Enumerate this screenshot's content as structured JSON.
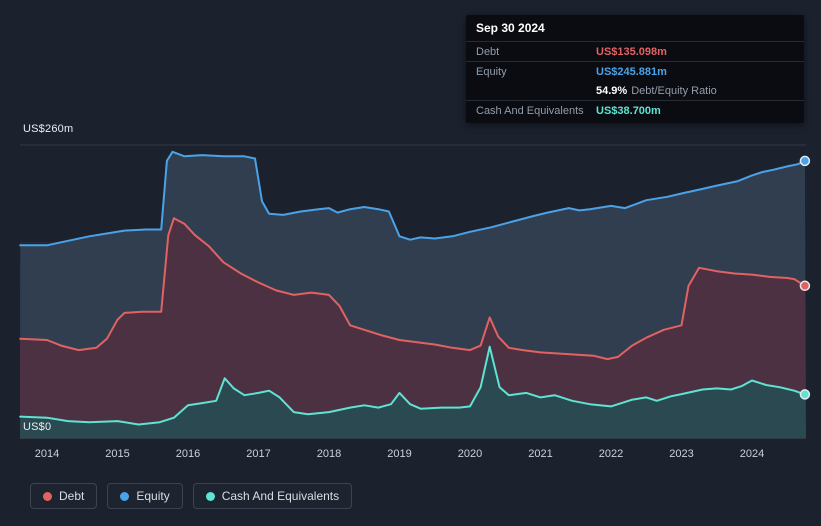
{
  "colors": {
    "background": "#1b222e",
    "debt": "#e26262",
    "equity": "#4aa3e8",
    "cash": "#5fe3d2"
  },
  "tooltip": {
    "date": "Sep 30 2024",
    "debt_label": "Debt",
    "debt_value": "US$135.098m",
    "equity_label": "Equity",
    "equity_value": "US$245.881m",
    "ratio_value": "54.9%",
    "ratio_label": "Debt/Equity Ratio",
    "cash_label": "Cash And Equivalents",
    "cash_value": "US$38.700m"
  },
  "legend": {
    "items": [
      {
        "label": "Debt",
        "color": "#e26262"
      },
      {
        "label": "Equity",
        "color": "#4aa3e8"
      },
      {
        "label": "Cash And Equivalents",
        "color": "#5fe3d2"
      }
    ]
  },
  "chart_data": {
    "type": "area",
    "y_top_label": "US$260m",
    "y_bottom_label": "US$0",
    "ylim": [
      0,
      260
    ],
    "x_ticks": [
      2014,
      2015,
      2016,
      2017,
      2018,
      2019,
      2020,
      2021,
      2022,
      2023,
      2024
    ],
    "grid": true,
    "legend_position": "bottom-left",
    "series": [
      {
        "name": "Equity",
        "color": "#4aa3e8",
        "fill": "#313e50",
        "latest_value": 245.881,
        "points": [
          [
            2013.62,
            171
          ],
          [
            2014,
            171
          ],
          [
            2014.3,
            175
          ],
          [
            2014.6,
            179
          ],
          [
            2014.9,
            182
          ],
          [
            2015.1,
            184
          ],
          [
            2015.4,
            185
          ],
          [
            2015.62,
            185
          ],
          [
            2015.7,
            246
          ],
          [
            2015.78,
            254
          ],
          [
            2015.95,
            250
          ],
          [
            2016.2,
            251
          ],
          [
            2016.5,
            250
          ],
          [
            2016.8,
            250
          ],
          [
            2016.95,
            248
          ],
          [
            2017.05,
            210
          ],
          [
            2017.15,
            199
          ],
          [
            2017.35,
            198
          ],
          [
            2017.6,
            201
          ],
          [
            2017.85,
            203
          ],
          [
            2018.0,
            204
          ],
          [
            2018.12,
            200
          ],
          [
            2018.3,
            203
          ],
          [
            2018.5,
            205
          ],
          [
            2018.7,
            203
          ],
          [
            2018.85,
            201
          ],
          [
            2019.0,
            179
          ],
          [
            2019.15,
            176
          ],
          [
            2019.3,
            178
          ],
          [
            2019.5,
            177
          ],
          [
            2019.75,
            179
          ],
          [
            2020.0,
            183
          ],
          [
            2020.3,
            187
          ],
          [
            2020.6,
            192
          ],
          [
            2020.9,
            197
          ],
          [
            2021.1,
            200
          ],
          [
            2021.4,
            204
          ],
          [
            2021.55,
            202
          ],
          [
            2021.7,
            203
          ],
          [
            2022.0,
            206
          ],
          [
            2022.2,
            204
          ],
          [
            2022.5,
            211
          ],
          [
            2022.8,
            214
          ],
          [
            2023.0,
            217
          ],
          [
            2023.3,
            221
          ],
          [
            2023.5,
            224
          ],
          [
            2023.8,
            228
          ],
          [
            2024.0,
            233
          ],
          [
            2024.15,
            236
          ],
          [
            2024.3,
            238
          ],
          [
            2024.5,
            241
          ],
          [
            2024.65,
            243
          ],
          [
            2024.75,
            245.881
          ]
        ]
      },
      {
        "name": "Debt",
        "color": "#e26262",
        "fill": "#4c3143",
        "latest_value": 135.098,
        "points": [
          [
            2013.62,
            88
          ],
          [
            2014,
            87
          ],
          [
            2014.2,
            82
          ],
          [
            2014.45,
            78
          ],
          [
            2014.7,
            80
          ],
          [
            2014.85,
            88
          ],
          [
            2015.0,
            105
          ],
          [
            2015.1,
            111
          ],
          [
            2015.35,
            112
          ],
          [
            2015.62,
            112
          ],
          [
            2015.72,
            180
          ],
          [
            2015.8,
            195
          ],
          [
            2015.95,
            190
          ],
          [
            2016.1,
            180
          ],
          [
            2016.3,
            170
          ],
          [
            2016.5,
            156
          ],
          [
            2016.75,
            146
          ],
          [
            2017.0,
            138
          ],
          [
            2017.25,
            131
          ],
          [
            2017.5,
            127
          ],
          [
            2017.75,
            129
          ],
          [
            2018.0,
            127
          ],
          [
            2018.15,
            117
          ],
          [
            2018.3,
            100
          ],
          [
            2018.5,
            96
          ],
          [
            2018.75,
            91
          ],
          [
            2019.0,
            87
          ],
          [
            2019.25,
            85
          ],
          [
            2019.5,
            83
          ],
          [
            2019.75,
            80
          ],
          [
            2020.0,
            78
          ],
          [
            2020.15,
            82
          ],
          [
            2020.28,
            107
          ],
          [
            2020.4,
            90
          ],
          [
            2020.55,
            80
          ],
          [
            2020.75,
            78
          ],
          [
            2021.0,
            76
          ],
          [
            2021.25,
            75
          ],
          [
            2021.5,
            74
          ],
          [
            2021.75,
            73
          ],
          [
            2021.95,
            70
          ],
          [
            2022.1,
            72
          ],
          [
            2022.3,
            82
          ],
          [
            2022.5,
            89
          ],
          [
            2022.75,
            96
          ],
          [
            2023.0,
            100
          ],
          [
            2023.1,
            135
          ],
          [
            2023.25,
            151
          ],
          [
            2023.5,
            148
          ],
          [
            2023.75,
            146
          ],
          [
            2024.0,
            145
          ],
          [
            2024.25,
            143
          ],
          [
            2024.5,
            142
          ],
          [
            2024.6,
            141
          ],
          [
            2024.75,
            135.098
          ]
        ]
      },
      {
        "name": "Cash And Equivalents",
        "color": "#5fe3d2",
        "fill": "#2a4950",
        "latest_value": 38.7,
        "points": [
          [
            2013.62,
            19
          ],
          [
            2014,
            18
          ],
          [
            2014.3,
            15
          ],
          [
            2014.6,
            14
          ],
          [
            2015.0,
            15
          ],
          [
            2015.3,
            12
          ],
          [
            2015.6,
            14
          ],
          [
            2015.8,
            18
          ],
          [
            2016.0,
            29
          ],
          [
            2016.2,
            31
          ],
          [
            2016.4,
            33
          ],
          [
            2016.52,
            53
          ],
          [
            2016.65,
            44
          ],
          [
            2016.8,
            38
          ],
          [
            2017.0,
            40
          ],
          [
            2017.15,
            42
          ],
          [
            2017.3,
            36
          ],
          [
            2017.5,
            23
          ],
          [
            2017.7,
            21
          ],
          [
            2018.0,
            23
          ],
          [
            2018.3,
            27
          ],
          [
            2018.5,
            29
          ],
          [
            2018.7,
            27
          ],
          [
            2018.88,
            30
          ],
          [
            2019.0,
            40
          ],
          [
            2019.15,
            30
          ],
          [
            2019.3,
            26
          ],
          [
            2019.6,
            27
          ],
          [
            2019.85,
            27
          ],
          [
            2020.0,
            28
          ],
          [
            2020.15,
            45
          ],
          [
            2020.28,
            81
          ],
          [
            2020.42,
            45
          ],
          [
            2020.55,
            38
          ],
          [
            2020.8,
            40
          ],
          [
            2021.0,
            36
          ],
          [
            2021.2,
            38
          ],
          [
            2021.45,
            33
          ],
          [
            2021.7,
            30
          ],
          [
            2022.0,
            28
          ],
          [
            2022.3,
            34
          ],
          [
            2022.5,
            36
          ],
          [
            2022.65,
            33
          ],
          [
            2022.85,
            37
          ],
          [
            2023.0,
            39
          ],
          [
            2023.3,
            43
          ],
          [
            2023.5,
            44
          ],
          [
            2023.7,
            43
          ],
          [
            2023.85,
            46
          ],
          [
            2024.0,
            51
          ],
          [
            2024.2,
            47
          ],
          [
            2024.4,
            45
          ],
          [
            2024.6,
            42
          ],
          [
            2024.75,
            38.7
          ]
        ]
      }
    ]
  }
}
